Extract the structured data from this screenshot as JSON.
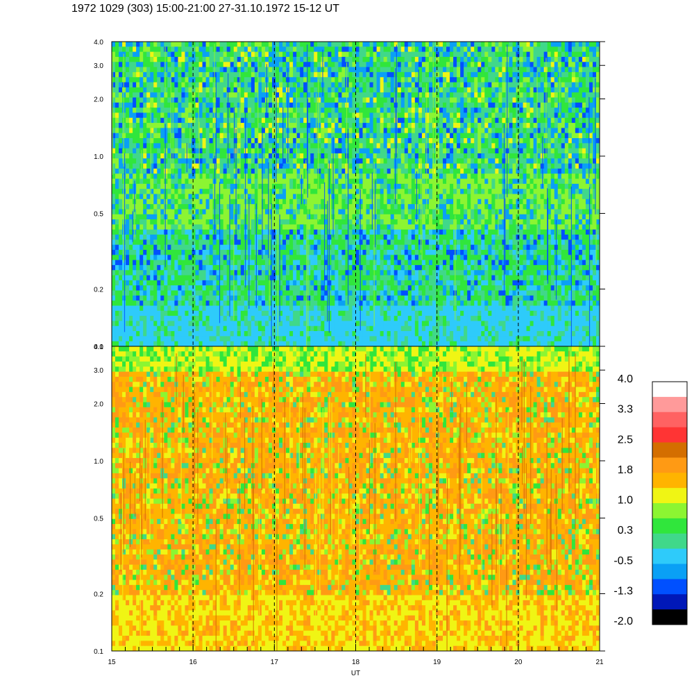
{
  "title": "1972 1029 (303) 15:00-21:00 27-31.10.1972  15-12 UT",
  "colors": {
    "top_palette": [
      "#2ecbfa",
      "#0aa0f5",
      "#40d88a",
      "#30e63c",
      "#8cf532",
      "#0050ff",
      "#0018b8",
      "#f0f514",
      "#ff9a14",
      "#ffb400"
    ],
    "bottom_palette": [
      "#ffb400",
      "#ff9a14",
      "#f0f514",
      "#8cf532",
      "#30e63c",
      "#40d88a",
      "#d46e00",
      "#ff3434"
    ]
  },
  "chart_data": [
    {
      "type": "heatmap",
      "name_panel": "upper",
      "xlabel": "UT",
      "x_ticks": [
        "15",
        "16",
        "17",
        "18",
        "19",
        "20",
        "21"
      ],
      "xlim": [
        15,
        21
      ],
      "y_scale": "log",
      "ylim": [
        0.1,
        4.0
      ],
      "y_ticks": [
        "0.1",
        "0.2",
        "0.5",
        "1.0",
        "2.0",
        "3.0",
        "4.0"
      ],
      "grid_vertical_dashed_at": [
        16,
        17,
        18,
        19,
        20
      ]
    },
    {
      "type": "heatmap",
      "name_panel": "lower",
      "xlabel": "UT",
      "x_ticks": [
        "15",
        "16",
        "17",
        "18",
        "19",
        "20",
        "21"
      ],
      "xlim": [
        15,
        21
      ],
      "y_scale": "log",
      "ylim": [
        0.1,
        4.0
      ],
      "y_ticks": [
        "0.1",
        "0.2",
        "0.5",
        "1.0",
        "2.0",
        "3.0",
        "4.0"
      ],
      "grid_vertical_dashed_at": [
        16,
        17,
        18,
        19,
        20
      ]
    }
  ],
  "colorbar": {
    "range": [
      -2.0,
      4.0
    ],
    "labels": [
      "4.0",
      "3.3",
      "2.5",
      "1.8",
      "1.0",
      "0.3",
      "-0.5",
      "-1.3",
      "-2.0"
    ],
    "colors_top_to_bottom": [
      "#ffffff",
      "#ff9a9a",
      "#ff6262",
      "#ff3434",
      "#d46e00",
      "#ff9a14",
      "#ffb400",
      "#f0f514",
      "#8cf532",
      "#30e63c",
      "#40d88a",
      "#2ecbfa",
      "#0aa0f5",
      "#0050ff",
      "#0018b8",
      "#000000"
    ]
  }
}
